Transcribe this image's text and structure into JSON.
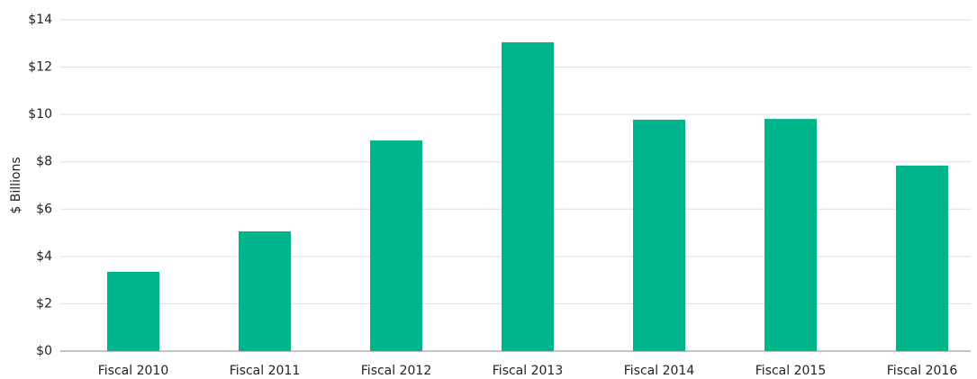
{
  "chart_data": {
    "type": "bar",
    "ylabel": "$ Billions",
    "categories": [
      "Fiscal 2010",
      "Fiscal 2011",
      "Fiscal 2012",
      "Fiscal 2013",
      "Fiscal 2014",
      "Fiscal 2015",
      "Fiscal 2016"
    ],
    "values": [
      3.35,
      5.06,
      8.9,
      13.05,
      9.78,
      9.81,
      7.84
    ],
    "color": "#00b48b",
    "ylim": [
      0,
      14
    ],
    "yticks": [
      {
        "value": 0,
        "label": "$0"
      },
      {
        "value": 2,
        "label": "$2"
      },
      {
        "value": 4,
        "label": "$4"
      },
      {
        "value": 6,
        "label": "$6"
      },
      {
        "value": 8,
        "label": "$8"
      },
      {
        "value": 10,
        "label": "$10"
      },
      {
        "value": 12,
        "label": "$12"
      },
      {
        "value": 14,
        "label": "$14"
      }
    ],
    "grid": true
  }
}
